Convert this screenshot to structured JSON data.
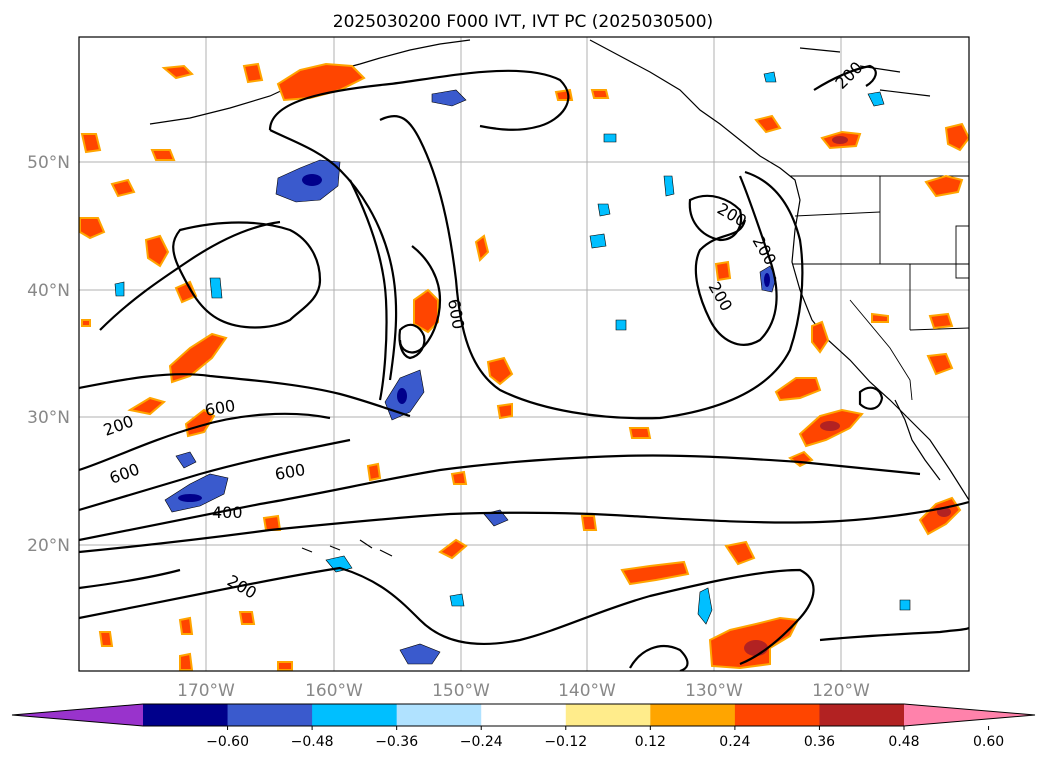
{
  "title": "2025030200 F000 IVT, IVT PC (2025030500)",
  "lat_labels": [
    "20°N",
    "30°N",
    "40°N",
    "50°N"
  ],
  "lon_labels": [
    "170°W",
    "160°W",
    "150°W",
    "140°W",
    "130°W",
    "120°W"
  ],
  "contour_labels": [
    "200",
    "200",
    "200",
    "200",
    "200",
    "400",
    "600",
    "600",
    "600",
    "600",
    "200"
  ],
  "colorbar": {
    "ticks": [
      "−0.60",
      "−0.48",
      "−0.36",
      "−0.24",
      "−0.12",
      "0.12",
      "0.24",
      "0.36",
      "0.48",
      "0.60"
    ],
    "colors": [
      "#9933cc",
      "#00008b",
      "#3a5acd",
      "#00bfff",
      "#b0e2ff",
      "#ffffff",
      "#ffec8b",
      "#ffa500",
      "#ff4500",
      "#b22222",
      "#ff82ab"
    ]
  }
}
